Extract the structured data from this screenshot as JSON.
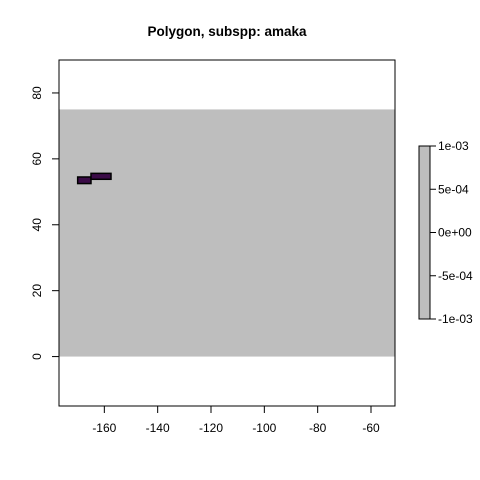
{
  "chart_data": {
    "type": "heatmap",
    "title": "Polygon, subspp: amaka",
    "xlabel": "",
    "ylabel": "",
    "xlim": [
      -177,
      -51
    ],
    "ylim": [
      -15,
      90
    ],
    "xticks": [
      -160,
      -140,
      -120,
      -100,
      -80,
      -60
    ],
    "xtick_labels": [
      "-160",
      "-140",
      "-120",
      "-100",
      "-80",
      "-60"
    ],
    "yticks": [
      0,
      20,
      40,
      60,
      80
    ],
    "ytick_labels": [
      "0",
      "20",
      "40",
      "60",
      "80"
    ],
    "raster_extent": {
      "xmin": -177,
      "xmax": -51,
      "ymin": 0,
      "ymax": 75
    },
    "raster_fill_color": "#bebebe",
    "polygons": [
      {
        "name": "amaka-cell-1",
        "xmin": -170,
        "xmax": -165,
        "ymin": 52.5,
        "ymax": 54.5,
        "fill": "#3b0b47",
        "stroke": "#000000"
      },
      {
        "name": "amaka-cell-2",
        "xmin": -165,
        "xmax": -157.5,
        "ymin": 53.8,
        "ymax": 55.6,
        "fill": "#3b0b47",
        "stroke": "#000000"
      }
    ],
    "legend": {
      "position": "right",
      "min": -0.001,
      "max": 0.001,
      "color": "#bebebe",
      "ticks": [
        0.001,
        0.0005,
        0,
        -0.0005,
        -0.001
      ],
      "tick_labels": [
        "1e-03",
        "5e-04",
        "0e+00",
        "-5e-04",
        "-1e-03"
      ]
    }
  }
}
